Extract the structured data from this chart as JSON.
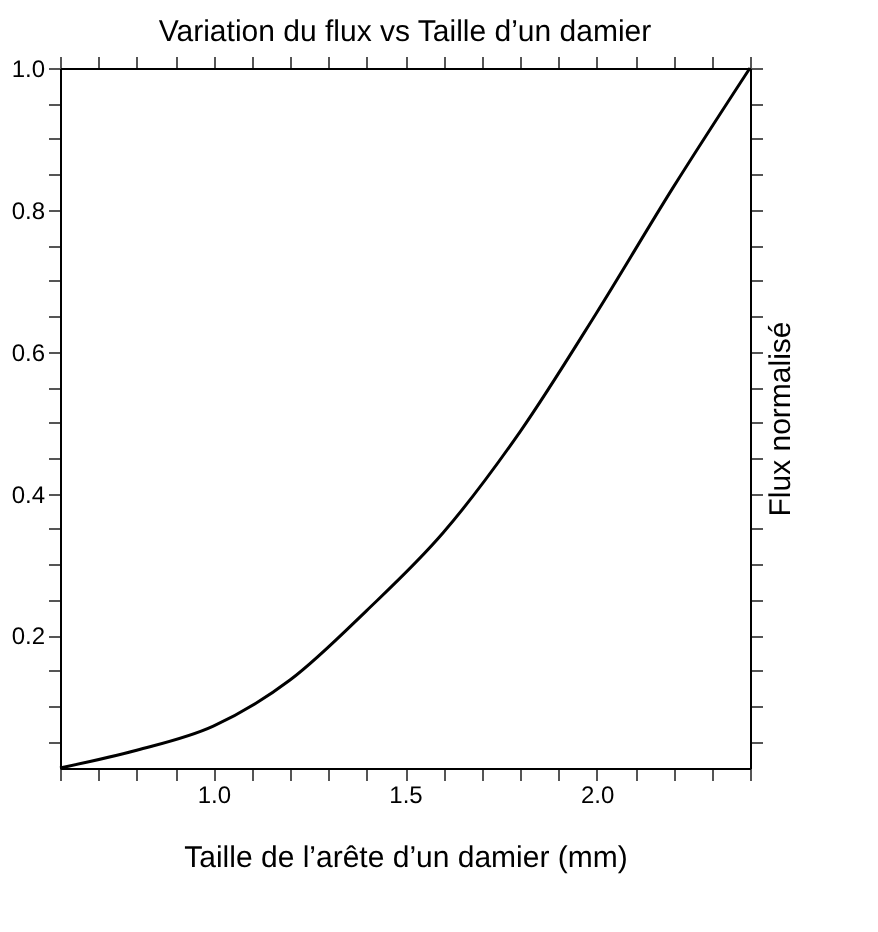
{
  "chart_data": {
    "type": "line",
    "title": "Variation du flux vs Taille d’un damier",
    "xlabel": "Taille de l’arête d’un damier (mm)",
    "ylabel": "Flux normalisé",
    "x": [
      0.6,
      0.8,
      1.0,
      1.2,
      1.4,
      1.6,
      1.8,
      2.0,
      2.2,
      2.4
    ],
    "series": [
      {
        "color": "#000000",
        "values": [
          0.013,
          0.038,
          0.072,
          0.137,
          0.235,
          0.345,
          0.487,
          0.655,
          0.832,
          1.0
        ]
      }
    ],
    "xlim": [
      0.6,
      2.4
    ],
    "ylim": [
      0.013,
      1.0
    ],
    "xticks": [
      {
        "value": 0.6,
        "label": null
      },
      {
        "value": 0.7,
        "label": null
      },
      {
        "value": 0.8,
        "label": null
      },
      {
        "value": 0.9,
        "label": null
      },
      {
        "value": 1.0,
        "label": "1.0"
      },
      {
        "value": 1.1,
        "label": null
      },
      {
        "value": 1.2,
        "label": null
      },
      {
        "value": 1.3,
        "label": null
      },
      {
        "value": 1.4,
        "label": null
      },
      1.5,
      {
        "value": 1.6,
        "label": null
      },
      {
        "value": 1.7,
        "label": null
      },
      {
        "value": 1.8,
        "label": null
      },
      {
        "value": 1.9,
        "label": null
      },
      {
        "value": 2.0,
        "label": "2.0"
      },
      {
        "value": 2.1,
        "label": null
      },
      {
        "value": 2.2,
        "label": null
      },
      {
        "value": 2.3,
        "label": null
      },
      {
        "value": 2.4,
        "label": null
      }
    ],
    "yticks": [
      {
        "value": 0.05,
        "label": null
      },
      {
        "value": 0.1,
        "label": null
      },
      {
        "value": 0.15,
        "label": null
      },
      0.2,
      {
        "value": 0.25,
        "label": null
      },
      {
        "value": 0.3,
        "label": null
      },
      {
        "value": 0.35,
        "label": null
      },
      0.4,
      {
        "value": 0.45,
        "label": null
      },
      {
        "value": 0.5,
        "label": null
      },
      {
        "value": 0.55,
        "label": null
      },
      0.6,
      {
        "value": 0.65,
        "label": null
      },
      {
        "value": 0.7,
        "label": null
      },
      {
        "value": 0.75,
        "label": null
      },
      0.8,
      {
        "value": 0.85,
        "label": null
      },
      {
        "value": 0.9,
        "label": null
      },
      {
        "value": 0.95,
        "label": null
      },
      {
        "value": 1.0,
        "label": "1.0"
      }
    ],
    "grid": false,
    "marker": "none",
    "line_style": "solid"
  }
}
